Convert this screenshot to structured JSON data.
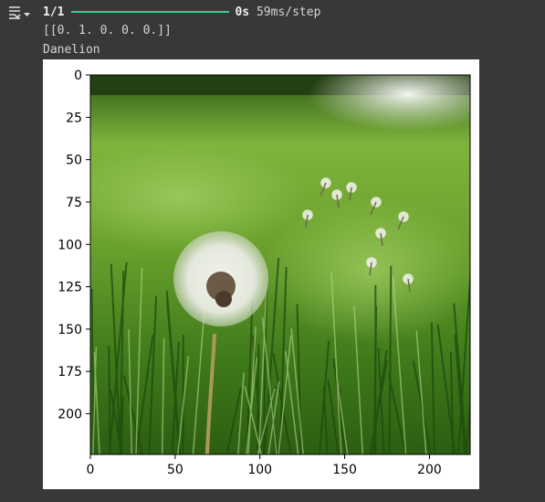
{
  "output": {
    "progress_count": "1/1",
    "progress_fraction": 1.0,
    "time_total": "0s",
    "time_per_step": "59ms/step",
    "prediction_array": "[[0. 1. 0. 0. 0.]]",
    "predicted_label": "Danelion"
  },
  "icons": {
    "gutter": "output-toggle-icon"
  },
  "colors": {
    "background": "#383838",
    "text": "#d5d5d5",
    "progress": "#3ec98f",
    "figure_bg": "#ffffff"
  },
  "chart_data": {
    "type": "image",
    "title": "",
    "xlabel": "",
    "ylabel": "",
    "xlim": [
      0,
      224
    ],
    "ylim": [
      224,
      0
    ],
    "x_ticks": [
      "0",
      "50",
      "100",
      "150",
      "200"
    ],
    "y_ticks": [
      "0",
      "25",
      "50",
      "75",
      "100",
      "125",
      "150",
      "175",
      "200"
    ],
    "image_content": "dandelion seed head in green grass",
    "grid": false
  }
}
